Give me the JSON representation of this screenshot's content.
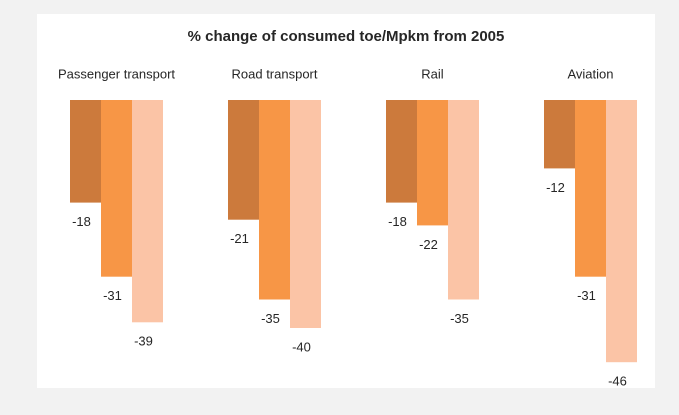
{
  "chart_data": {
    "type": "bar",
    "title": "% change of consumed toe/Mpkm from 2005",
    "categories": [
      "Passenger transport",
      "Road transport",
      "Rail",
      "Aviation"
    ],
    "series": [
      {
        "color": "#cc7a3c",
        "values": [
          -18,
          -21,
          -18,
          -12
        ]
      },
      {
        "color": "#f79646",
        "values": [
          -31,
          -35,
          -22,
          -31
        ]
      },
      {
        "color": "#fbc4a6",
        "values": [
          -39,
          -40,
          -35,
          -46
        ]
      }
    ]
  }
}
